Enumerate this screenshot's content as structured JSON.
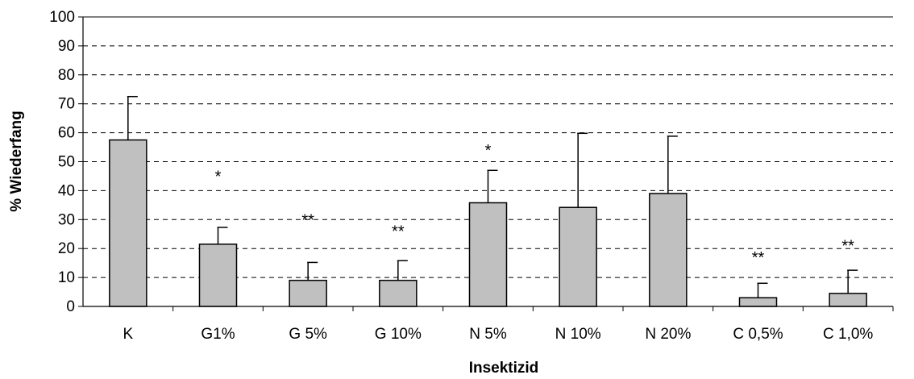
{
  "chart_data": {
    "type": "bar",
    "title": "",
    "xlabel": "Insektizid",
    "ylabel": "% Wiederfang",
    "ylim": [
      0,
      100
    ],
    "yticks": [
      0,
      10,
      20,
      30,
      40,
      50,
      60,
      70,
      80,
      90,
      100
    ],
    "grid": "dashed horizontal",
    "bar_color": "#c0c0c0",
    "categories": [
      "K",
      "G1%",
      "G 5%",
      "G 10%",
      "N 5%",
      "N 10%",
      "N 20%",
      "C 0,5%",
      "C 1,0%"
    ],
    "values": [
      57.5,
      21.5,
      9,
      9,
      35.8,
      34.2,
      39,
      3,
      4.5
    ],
    "error_upper": [
      72.5,
      27.3,
      15.2,
      15.8,
      47,
      59.8,
      58.8,
      8,
      12.5
    ],
    "annotations": [
      "",
      "*",
      "**",
      "**",
      "*",
      "",
      "",
      "**",
      "**"
    ],
    "annotation_y": [
      null,
      45,
      30,
      26,
      54,
      null,
      null,
      17,
      21
    ]
  }
}
